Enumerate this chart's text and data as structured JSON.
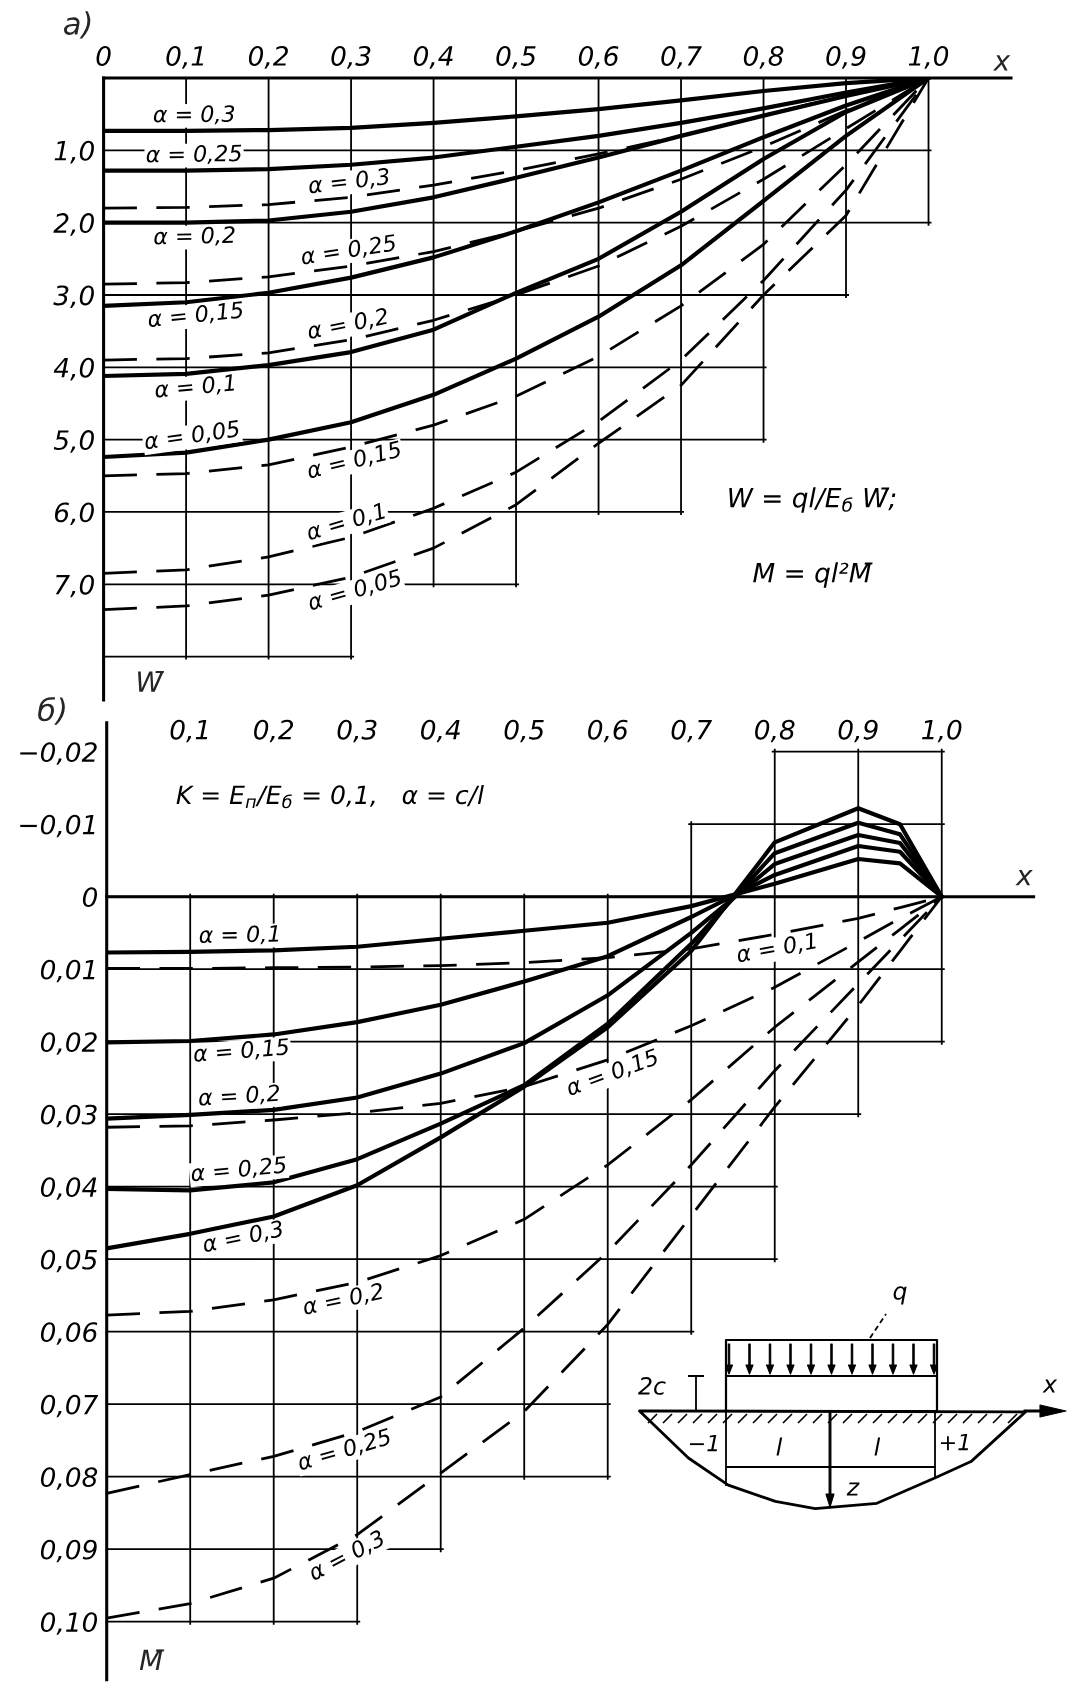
{
  "chart_data": [
    {
      "type": "line",
      "title": "а)",
      "xlabel": "x",
      "ylabel": "W̄",
      "x": [
        0,
        0.1,
        0.2,
        0.3,
        0.4,
        0.5,
        0.6,
        0.7,
        0.8,
        0.9,
        1.0
      ],
      "xlim": [
        0,
        1.1
      ],
      "ylim": [
        8.6,
        0
      ],
      "xticks": [
        0,
        {
          "value": 0.1,
          "label": "0,1"
        },
        {
          "value": 0.2,
          "label": "0,2"
        },
        {
          "value": 0.3,
          "label": "0,3"
        },
        {
          "value": 0.4,
          "label": "0,4"
        },
        {
          "value": 0.5,
          "label": "0,5"
        },
        {
          "value": 0.6,
          "label": "0,6"
        },
        {
          "value": 0.7,
          "label": "0,7"
        },
        {
          "value": 0.8,
          "label": "0,8"
        },
        {
          "value": 0.9,
          "label": "0,9"
        },
        {
          "value": 1.0,
          "label": "1,0"
        }
      ],
      "yticks": [
        {
          "value": 1,
          "label": "1,0"
        },
        {
          "value": 2,
          "label": "2,0"
        },
        {
          "value": 3,
          "label": "3,0"
        },
        {
          "value": 4,
          "label": "4,0"
        },
        {
          "value": 5,
          "label": "5,0"
        },
        {
          "value": 6,
          "label": "6,0"
        },
        {
          "value": 7,
          "label": "7,0"
        },
        {
          "value": 8,
          "label": null
        }
      ],
      "grid": true,
      "series": [
        {
          "name": "α = 0,3",
          "color": "#000000",
          "line_style": "solid",
          "values": [
            0.73,
            0.73,
            0.72,
            0.69,
            0.62,
            0.53,
            0.43,
            0.31,
            0.18,
            0.07,
            0
          ]
        },
        {
          "name": "α = 0,25",
          "color": "#000000",
          "line_style": "solid",
          "values": [
            1.28,
            1.28,
            1.26,
            1.2,
            1.1,
            0.95,
            0.8,
            0.62,
            0.42,
            0.2,
            0
          ]
        },
        {
          "name": "α = 0,2",
          "color": "#000000",
          "line_style": "solid",
          "values": [
            2.0,
            2.0,
            1.97,
            1.85,
            1.65,
            1.38,
            1.1,
            0.8,
            0.52,
            0.25,
            0
          ]
        },
        {
          "name": "α = 0,15",
          "color": "#000000",
          "line_style": "solid",
          "values": [
            3.15,
            3.1,
            2.97,
            2.76,
            2.48,
            2.12,
            1.72,
            1.28,
            0.82,
            0.38,
            0
          ]
        },
        {
          "name": "α = 0,1",
          "color": "#000000",
          "line_style": "solid",
          "values": [
            4.12,
            4.09,
            3.97,
            3.79,
            3.48,
            2.97,
            2.5,
            1.85,
            1.12,
            0.47,
            0
          ]
        },
        {
          "name": "α = 0,05",
          "color": "#000000",
          "line_style": "solid",
          "values": [
            5.24,
            5.18,
            5.0,
            4.76,
            4.38,
            3.88,
            3.3,
            2.59,
            1.7,
            0.8,
            0
          ]
        },
        {
          "name": "α = 0,3",
          "color": "#000000",
          "line_style": "dashed",
          "values": [
            1.8,
            1.79,
            1.75,
            1.65,
            1.48,
            1.28,
            1.05,
            0.8,
            0.52,
            0.24,
            0
          ]
        },
        {
          "name": "α = 0,25",
          "color": "#000000",
          "line_style": "dashed",
          "values": [
            2.85,
            2.83,
            2.75,
            2.6,
            2.4,
            2.12,
            1.8,
            1.4,
            0.95,
            0.45,
            0
          ]
        },
        {
          "name": "α = 0,2",
          "color": "#000000",
          "line_style": "dashed",
          "values": [
            3.9,
            3.88,
            3.8,
            3.62,
            3.35,
            3.0,
            2.6,
            2.05,
            1.4,
            0.7,
            0
          ]
        },
        {
          "name": "α = 0,15",
          "color": "#000000",
          "line_style": "dashed",
          "values": [
            5.5,
            5.47,
            5.35,
            5.1,
            4.8,
            4.4,
            3.85,
            3.15,
            2.3,
            1.2,
            0
          ]
        },
        {
          "name": "α = 0,1",
          "color": "#000000",
          "line_style": "dashed",
          "values": [
            6.85,
            6.8,
            6.62,
            6.35,
            5.95,
            5.45,
            4.75,
            3.9,
            2.8,
            1.55,
            0
          ]
        },
        {
          "name": "α = 0,05",
          "color": "#000000",
          "line_style": "dashed",
          "values": [
            7.35,
            7.3,
            7.15,
            6.9,
            6.5,
            5.9,
            5.05,
            4.25,
            3.0,
            1.9,
            0
          ]
        }
      ],
      "annotations": [
        "W = ql/E$_{б}$ W̄;",
        "M = ql²M̄"
      ]
    },
    {
      "type": "line",
      "title": "б)",
      "xlabel": "x",
      "ylabel": "M̄",
      "x": [
        0,
        0.1,
        0.2,
        0.3,
        0.4,
        0.5,
        0.6,
        0.7,
        0.8,
        0.9,
        0.95,
        1.0
      ],
      "xlim": [
        0,
        1.11
      ],
      "ylim": [
        0.108,
        -0.024
      ],
      "xticks": [
        {
          "value": 0.1,
          "label": "0,1"
        },
        {
          "value": 0.2,
          "label": "0,2"
        },
        {
          "value": 0.3,
          "label": "0,3"
        },
        {
          "value": 0.4,
          "label": "0,4"
        },
        {
          "value": 0.5,
          "label": "0,5"
        },
        {
          "value": 0.6,
          "label": "0,6"
        },
        {
          "value": 0.7,
          "label": "0,7"
        },
        {
          "value": 0.8,
          "label": "0,8"
        },
        {
          "value": 0.9,
          "label": "0,9"
        },
        {
          "value": 1.0,
          "label": "1,0"
        }
      ],
      "yticks": [
        {
          "value": -0.02,
          "label": "−0,02"
        },
        {
          "value": -0.01,
          "label": "−0,01"
        },
        0,
        {
          "value": 0.01,
          "label": "0,01"
        },
        {
          "value": 0.02,
          "label": "0,02"
        },
        {
          "value": 0.03,
          "label": "0,03"
        },
        {
          "value": 0.04,
          "label": "0,04"
        },
        {
          "value": 0.05,
          "label": "0,05"
        },
        {
          "value": 0.06,
          "label": "0,06"
        },
        {
          "value": 0.07,
          "label": "0,07"
        },
        {
          "value": 0.08,
          "label": "0,08"
        },
        {
          "value": 0.09,
          "label": "0,09"
        },
        {
          "value": 0.1,
          "label": "0,10"
        }
      ],
      "grid": true,
      "series": [
        {
          "name": "α = 0,1",
          "color": "#000000",
          "line_style": "solid",
          "values": [
            0.0077,
            0.0076,
            0.0074,
            0.0069,
            0.0058,
            0.0047,
            0.0036,
            0.0013,
            -0.0018,
            -0.0052,
            -0.0046,
            0
          ]
        },
        {
          "name": "α = 0,15",
          "color": "#000000",
          "line_style": "solid",
          "values": [
            0.0201,
            0.0199,
            0.019,
            0.0173,
            0.0149,
            0.0117,
            0.0082,
            0.0028,
            -0.003,
            -0.007,
            -0.0062,
            0
          ]
        },
        {
          "name": "α = 0,2",
          "color": "#000000",
          "line_style": "solid",
          "values": [
            0.0306,
            0.0301,
            0.0294,
            0.0277,
            0.0244,
            0.0202,
            0.0136,
            0.005,
            -0.0045,
            -0.0085,
            -0.0074,
            0
          ]
        },
        {
          "name": "α = 0,25",
          "color": "#000000",
          "line_style": "solid",
          "values": [
            0.0403,
            0.0405,
            0.0394,
            0.0362,
            0.0313,
            0.026,
            0.0175,
            0.0065,
            -0.006,
            -0.0102,
            -0.0086,
            0
          ]
        },
        {
          "name": "α = 0,3",
          "color": "#000000",
          "line_style": "solid",
          "values": [
            0.0485,
            0.0465,
            0.0441,
            0.0398,
            0.0332,
            0.0262,
            0.018,
            0.0075,
            -0.0075,
            -0.0122,
            -0.01,
            0
          ]
        },
        {
          "name": "α = 0,1",
          "color": "#000000",
          "line_style": "dashed",
          "values": [
            0.0099,
            0.0099,
            0.0098,
            0.0097,
            0.0095,
            0.0091,
            0.0084,
            0.0072,
            0.0052,
            0.003,
            0.0015,
            0
          ]
        },
        {
          "name": "α = 0,15",
          "color": "#000000",
          "line_style": "dashed",
          "values": [
            0.0318,
            0.0316,
            0.0308,
            0.0298,
            0.0285,
            0.0262,
            0.0225,
            0.0178,
            0.0125,
            0.0062,
            0.003,
            0
          ]
        },
        {
          "name": "α = 0,2",
          "color": "#000000",
          "line_style": "dashed",
          "values": [
            0.0577,
            0.0572,
            0.0556,
            0.0532,
            0.0495,
            0.0445,
            0.037,
            0.028,
            0.018,
            0.009,
            0.0045,
            0
          ]
        },
        {
          "name": "α = 0,25",
          "color": "#000000",
          "line_style": "dashed",
          "values": [
            0.0823,
            0.0797,
            0.0772,
            0.0738,
            0.069,
            0.0595,
            0.049,
            0.037,
            0.024,
            0.012,
            0.006,
            0
          ]
        },
        {
          "name": "α = 0,3",
          "color": "#000000",
          "line_style": "dashed",
          "values": [
            0.0995,
            0.0975,
            0.094,
            0.088,
            0.0795,
            0.071,
            0.059,
            0.044,
            0.029,
            0.015,
            0.0075,
            0
          ]
        }
      ],
      "annotations": [
        "K = E$_{п}$/E$_{б}$ = 0,1,   α = c/l",
        "q",
        "2c",
        "x",
        "−1",
        "l",
        "l",
        "+1",
        "z"
      ]
    }
  ]
}
